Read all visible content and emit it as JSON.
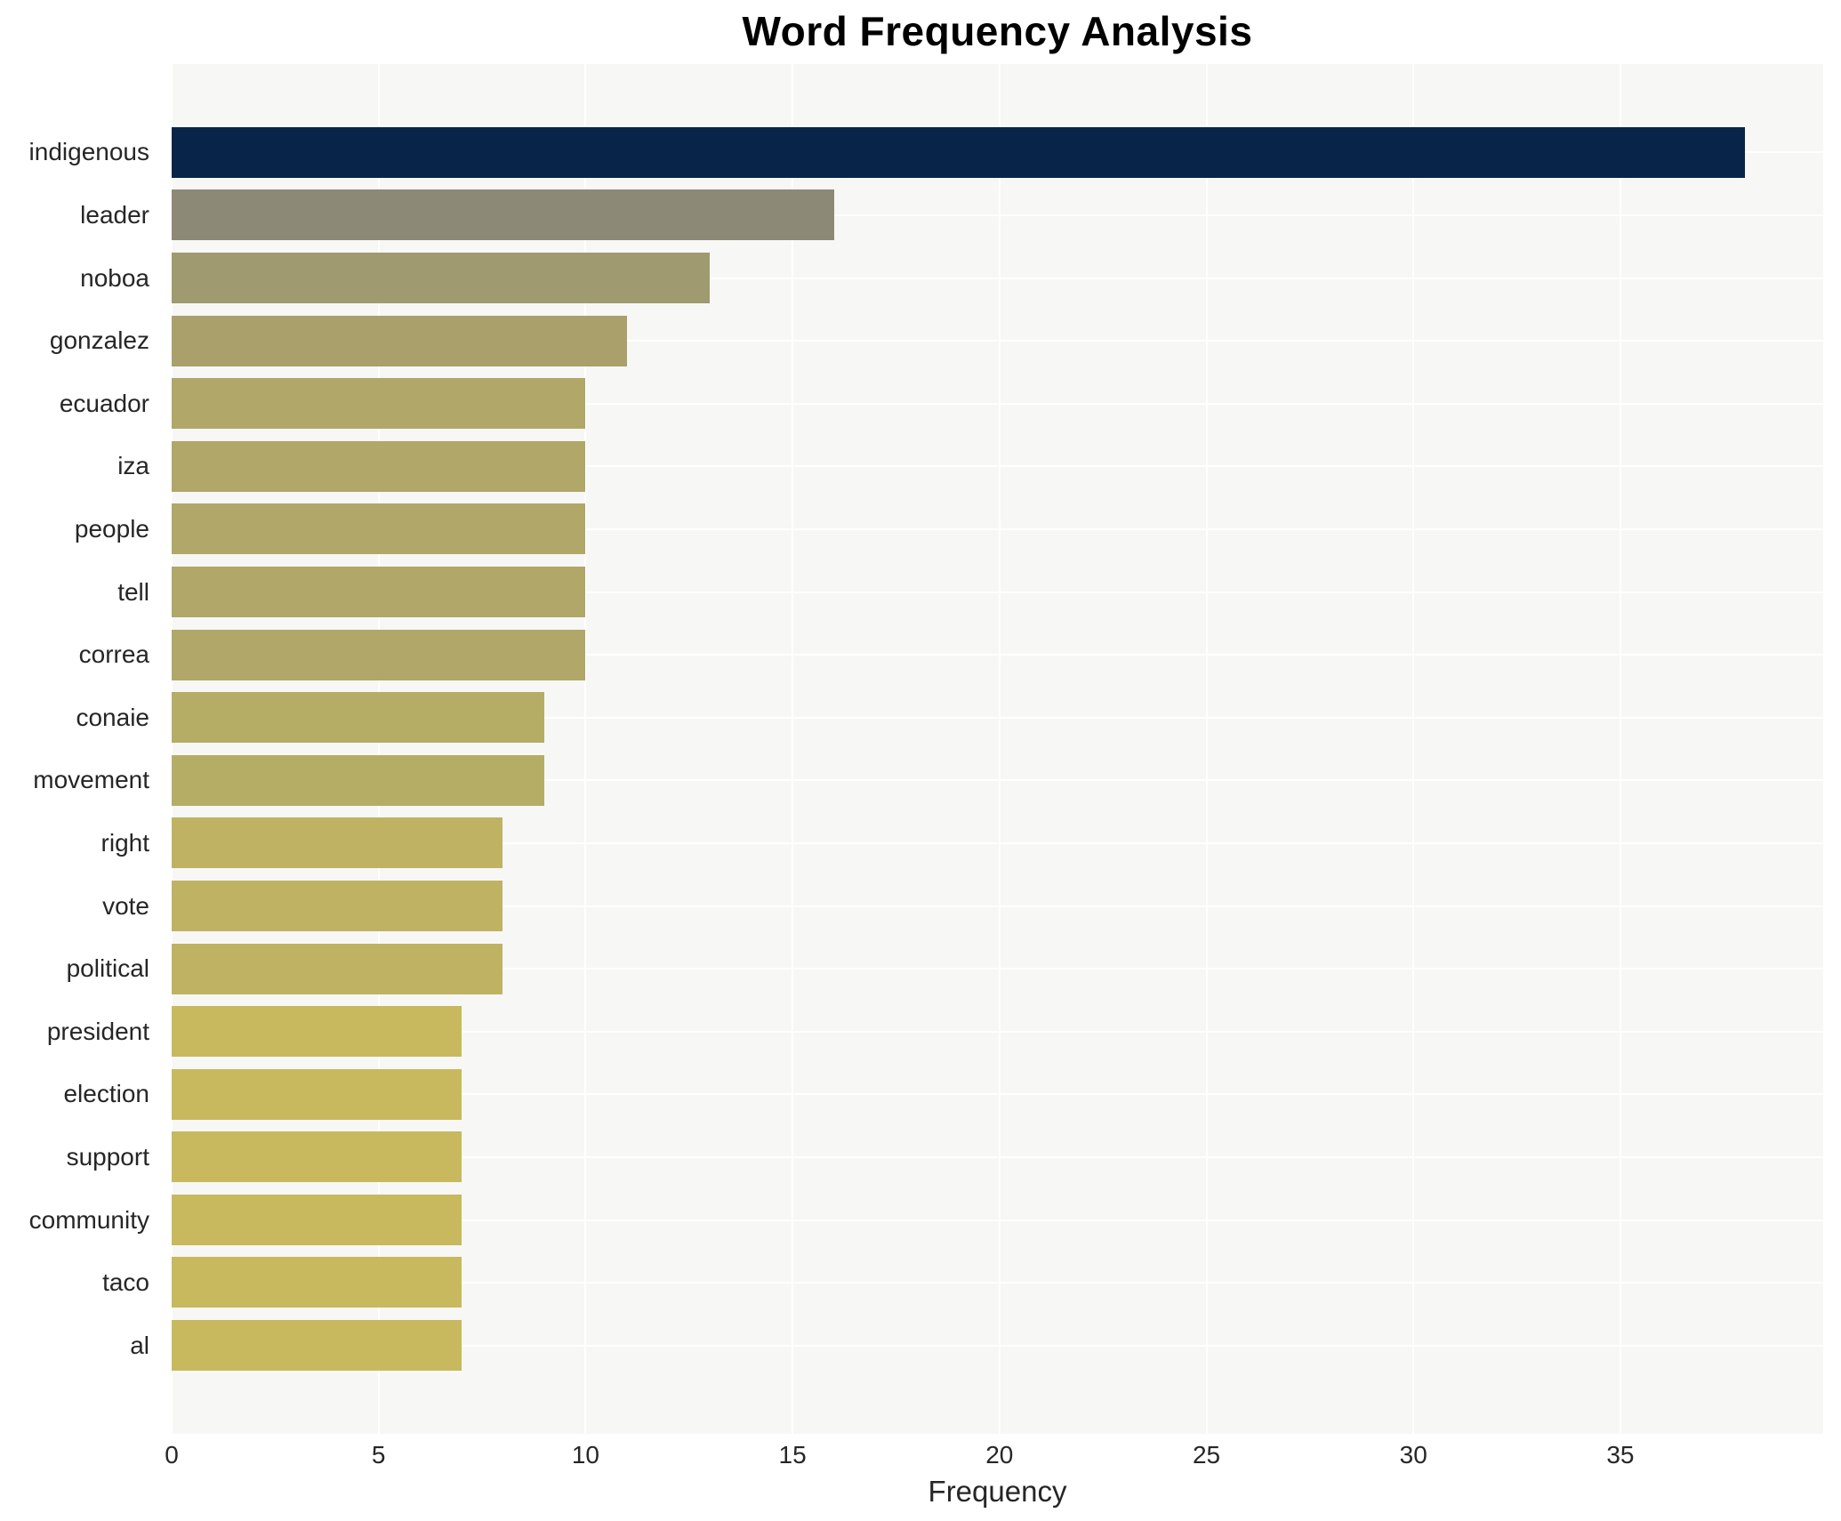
{
  "title": "Word Frequency Analysis",
  "chart_data": {
    "type": "bar",
    "orientation": "horizontal",
    "title": "Word Frequency Analysis",
    "xlabel": "Frequency",
    "ylabel": "",
    "categories": [
      "indigenous",
      "leader",
      "noboa",
      "gonzalez",
      "ecuador",
      "iza",
      "people",
      "tell",
      "correa",
      "conaie",
      "movement",
      "right",
      "vote",
      "political",
      "president",
      "election",
      "support",
      "community",
      "taco",
      "al"
    ],
    "values": [
      38,
      16,
      13,
      11,
      10,
      10,
      10,
      10,
      10,
      9,
      9,
      8,
      8,
      8,
      7,
      7,
      7,
      7,
      7,
      7
    ],
    "bar_colors": [
      "#082549",
      "#8d8977",
      "#9f9a70",
      "#a9a06b",
      "#b0a769",
      "#b0a769",
      "#b0a769",
      "#b0a769",
      "#b0a769",
      "#b5ad66",
      "#b5ad66",
      "#bfb363",
      "#bfb363",
      "#bfb363",
      "#c8b95e",
      "#c8b95e",
      "#c8b95e",
      "#c8b95e",
      "#c8b95e",
      "#c8b95e"
    ],
    "xlim": [
      0,
      39.9
    ],
    "xticks": [
      0,
      5,
      10,
      15,
      20,
      25,
      30,
      35
    ],
    "grid": "white gridlines on light-gray panel, vertical at x ticks and horizontal at bar centers",
    "plot_background": "#f7f7f5",
    "gridline_color": "#ffffff",
    "legend": "none"
  },
  "colors": {
    "page_background": "#ffffff",
    "title_text": "#000000",
    "tick_text": "#262626",
    "label_text": "#262626"
  }
}
